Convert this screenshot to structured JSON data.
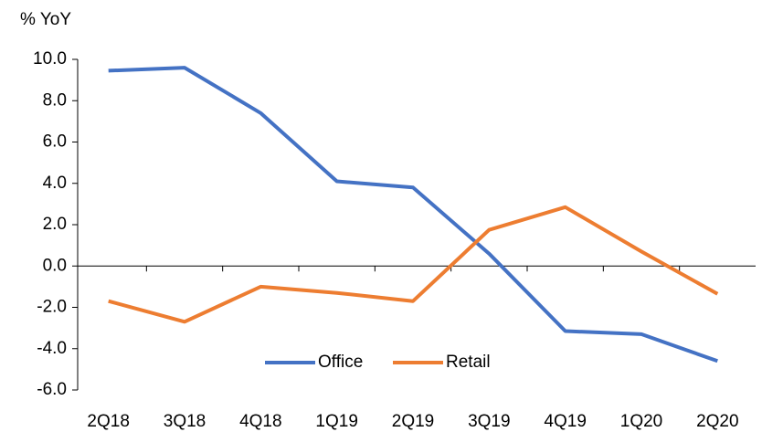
{
  "chart_data": {
    "type": "line",
    "y_label": "% YoY",
    "categories": [
      "2Q18",
      "3Q18",
      "4Q18",
      "1Q19",
      "2Q19",
      "3Q19",
      "4Q19",
      "1Q20",
      "2Q20"
    ],
    "series": [
      {
        "name": "Office",
        "color": "#4472c4",
        "values": [
          9.45,
          9.6,
          7.4,
          4.1,
          3.8,
          0.6,
          -3.15,
          -3.3,
          -4.6
        ]
      },
      {
        "name": "Retail",
        "color": "#ed7d31",
        "values": [
          -1.7,
          -2.7,
          -1.0,
          -1.3,
          -1.7,
          1.75,
          2.85,
          0.7,
          -1.35
        ]
      }
    ],
    "ylim": [
      -6,
      10
    ],
    "yticks": [
      {
        "value": -6,
        "label": "-6.0"
      },
      {
        "value": -4,
        "label": "-4.0"
      },
      {
        "value": -2,
        "label": "-2.0"
      },
      {
        "value": 0,
        "label": "0.0"
      },
      {
        "value": 2,
        "label": "2.0"
      },
      {
        "value": 4,
        "label": "4.0"
      },
      {
        "value": 6,
        "label": "6.0"
      },
      {
        "value": 8,
        "label": "8.0"
      },
      {
        "value": 10,
        "label": "10.0"
      }
    ],
    "legend": "bottom"
  }
}
